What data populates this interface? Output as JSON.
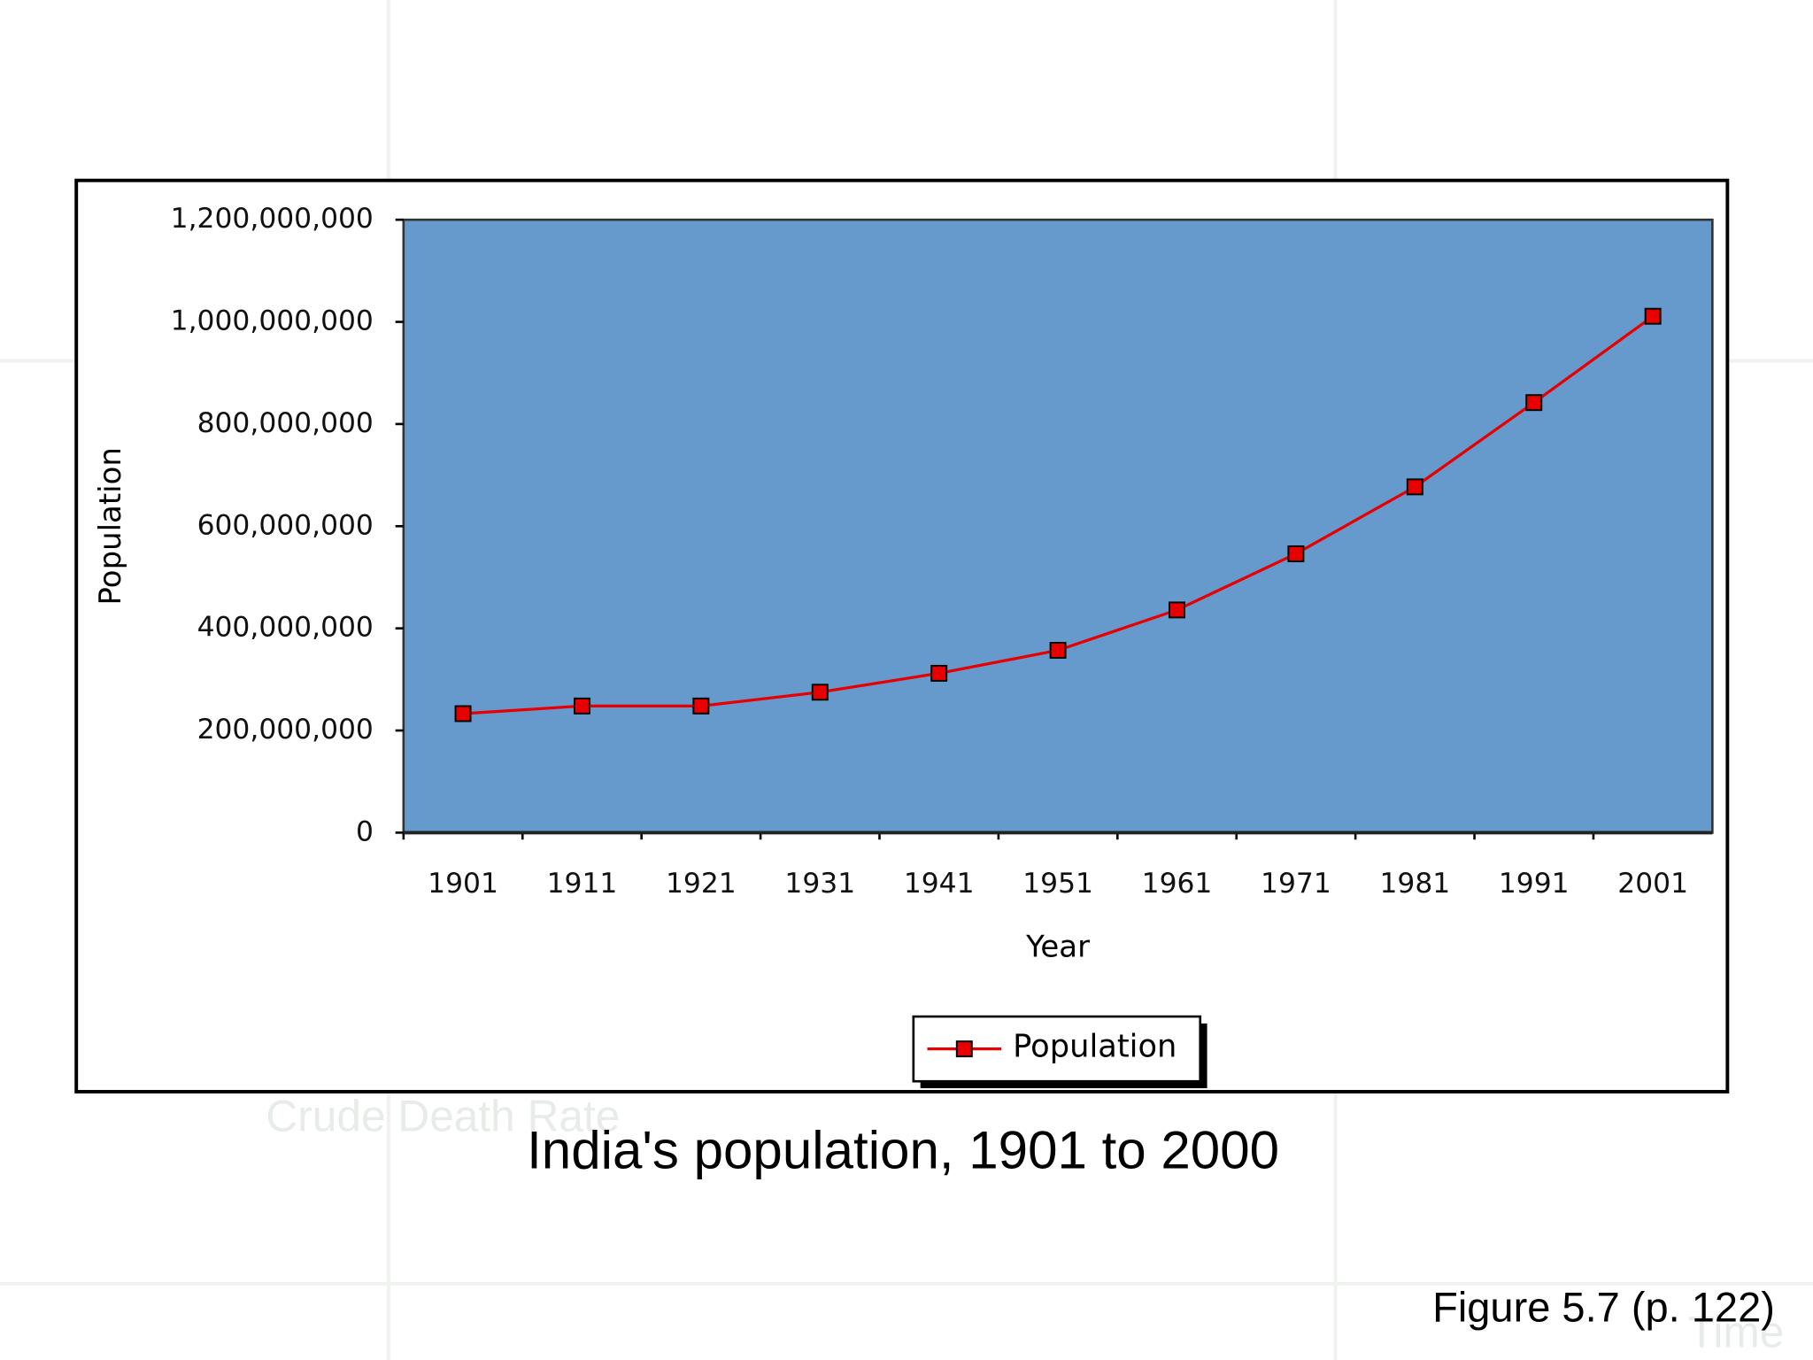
{
  "chart_data": {
    "type": "line",
    "title": "India's population, 1901 to 2000",
    "figure_label": "Figure 5.7 (p. 122)",
    "x_label": "Year",
    "y_label": "Population",
    "categories": [
      "1901",
      "1911",
      "1921",
      "1931",
      "1941",
      "1951",
      "1961",
      "1971",
      "1981",
      "1991",
      "2001"
    ],
    "series": [
      {
        "name": "Population",
        "color": "#e80000",
        "values": [
          233000000,
          248000000,
          248000000,
          275000000,
          312000000,
          357000000,
          436000000,
          546000000,
          677000000,
          842000000,
          1011000000
        ]
      }
    ],
    "ylim": [
      0,
      1200000000
    ],
    "yticks": [
      0,
      {
        "value": 200000000,
        "label": "200,000,000"
      },
      {
        "value": 400000000,
        "label": "400,000,000"
      },
      {
        "value": 600000000,
        "label": "600,000,000"
      },
      {
        "value": 800000000,
        "label": "800,000,000"
      },
      {
        "value": 1000000000,
        "label": "1,000,000,000"
      },
      {
        "value": 1200000000,
        "label": "1,200,000,000"
      }
    ],
    "plot_color": "#6699cc",
    "legend": "bottom"
  },
  "background_texts": [
    "Crude Death Rate",
    "Time"
  ]
}
